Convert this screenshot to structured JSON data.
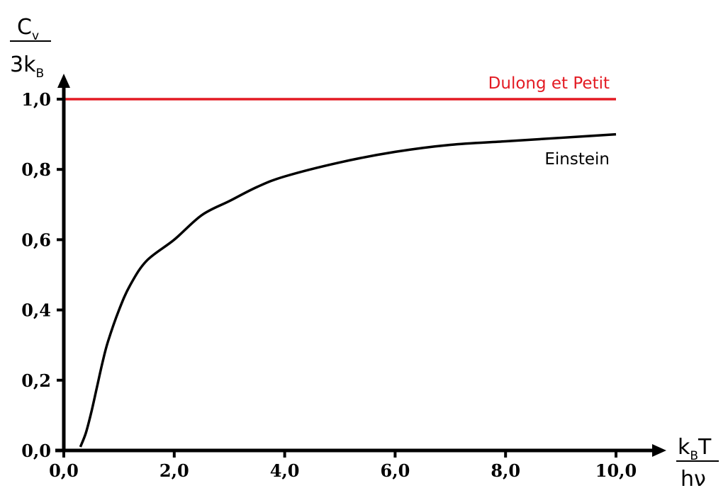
{
  "chart_data": {
    "type": "line",
    "title": "",
    "xlabel": {
      "main": "k",
      "sub": "B",
      "after": "T",
      "denominator": "hν"
    },
    "ylabel": {
      "numerator_main": "C",
      "numerator_sub": "v",
      "denominator_main": "3k",
      "denominator_sub": "B"
    },
    "xlim": [
      0,
      10.5
    ],
    "ylim": [
      0,
      1.05
    ],
    "x_ticks": [
      0,
      2,
      4,
      6,
      8,
      10
    ],
    "x_tick_labels": [
      "0,0",
      "2,0",
      "4,0",
      "6,0",
      "8,0",
      "10,0"
    ],
    "y_ticks": [
      0,
      0.2,
      0.4,
      0.6,
      0.8,
      1.0
    ],
    "y_tick_labels": [
      "0,0",
      "0,2",
      "0,4",
      "0,6",
      "0,8",
      "1,0"
    ],
    "grid": false,
    "series": [
      {
        "name": "Dulong et Petit",
        "color": "#e31b23",
        "x": [
          0,
          10
        ],
        "y": [
          1.0,
          1.0
        ]
      },
      {
        "name": "Einstein",
        "color": "#000000",
        "x": [
          0.3,
          0.4,
          0.5,
          0.6,
          0.7,
          0.8,
          1.0,
          1.2,
          1.5,
          2.0,
          2.5,
          3.0,
          3.5,
          4.0,
          5.0,
          6.0,
          7.0,
          8.0,
          9.0,
          10.0
        ],
        "y": [
          0.01,
          0.05,
          0.11,
          0.18,
          0.25,
          0.31,
          0.4,
          0.47,
          0.54,
          0.6,
          0.67,
          0.71,
          0.75,
          0.78,
          0.82,
          0.85,
          0.87,
          0.88,
          0.89,
          0.9
        ]
      }
    ]
  }
}
